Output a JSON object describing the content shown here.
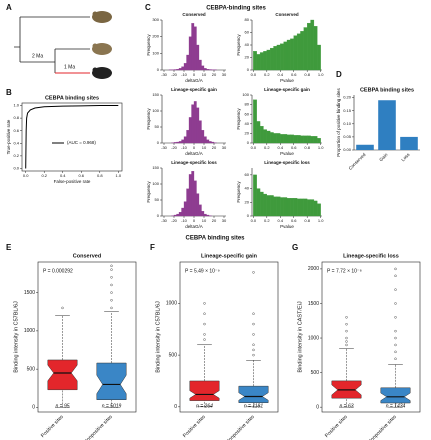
{
  "panel_a": {
    "label": "A",
    "branch_labels": [
      "2 Ma",
      "1 Ma"
    ]
  },
  "panel_c": {
    "label": "C",
    "title": "CEBPA-binding sites"
  },
  "panel_efg": {
    "title": "CEBPA binding sites"
  },
  "chart_data": [
    {
      "type": "line",
      "panel_label": "B",
      "title": "CEBPA binding sites",
      "xlabel": "False-positive rate",
      "ylabel": "True-positive rate",
      "legend": "(AUC = 0.968)",
      "x": [
        0,
        0.005,
        0.01,
        0.02,
        0.05,
        0.1,
        0.2,
        0.4,
        0.6,
        0.8,
        1.0
      ],
      "values": [
        0,
        0.6,
        0.8,
        0.88,
        0.93,
        0.96,
        0.98,
        0.99,
        0.995,
        1,
        1
      ],
      "color": "#000000",
      "xlim": [
        -0.04,
        1.04
      ],
      "ylim": [
        -0.04,
        1.04
      ],
      "xticks": [
        {
          "value": 0,
          "label": "0.0"
        },
        0.2,
        0.4,
        0.6,
        0.8,
        {
          "value": 1,
          "label": "1.0"
        }
      ],
      "yticks": [
        {
          "value": 0,
          "label": "0.0"
        },
        0.2,
        0.4,
        0.6,
        0.8,
        {
          "value": 1,
          "label": "1.0"
        }
      ]
    },
    {
      "type": "histogram",
      "title": "Conserved",
      "xlabel": "deltaG/A",
      "ylabel": "Frequency",
      "color": "#8e3c91",
      "bins": [
        -30,
        -27.5,
        -25,
        -22.5,
        -20,
        -17.5,
        -15,
        -12.5,
        -10,
        -7.5,
        -5,
        -2.5,
        0,
        2.5,
        5,
        7.5,
        10,
        12.5,
        15,
        17.5,
        20,
        22.5,
        25,
        27.5,
        30
      ],
      "values": [
        0,
        0,
        1,
        2,
        3,
        5,
        10,
        20,
        40,
        90,
        200,
        280,
        260,
        150,
        60,
        25,
        10,
        5,
        3,
        2,
        1,
        0,
        0,
        0
      ],
      "xlim": [
        -32,
        32
      ],
      "xticks": [
        -30,
        -20,
        -10,
        0,
        10,
        20,
        30
      ],
      "ylim": [
        0,
        300
      ],
      "yticks": [
        0,
        100,
        200,
        300
      ]
    },
    {
      "type": "histogram",
      "title": "Conserved",
      "xlabel": "Pvalue",
      "ylabel": "Frequency",
      "color": "#3f9a3c",
      "bins": [
        0,
        0.05,
        0.1,
        0.15,
        0.2,
        0.25,
        0.3,
        0.35,
        0.4,
        0.45,
        0.5,
        0.55,
        0.6,
        0.65,
        0.7,
        0.75,
        0.8,
        0.85,
        0.9,
        0.95,
        1
      ],
      "values": [
        30,
        25,
        28,
        30,
        32,
        35,
        38,
        40,
        42,
        45,
        48,
        50,
        55,
        58,
        62,
        68,
        75,
        80,
        70,
        40
      ],
      "xlim": [
        -0.02,
        1.02
      ],
      "xticks": [
        {
          "value": 0,
          "label": "0.0"
        },
        0.2,
        0.4,
        0.6,
        0.8,
        {
          "value": 1,
          "label": "1.0"
        }
      ],
      "ylim": [
        0,
        80
      ],
      "yticks": [
        0,
        20,
        40,
        60,
        80
      ]
    },
    {
      "type": "histogram",
      "title": "Lineage-specific gain",
      "xlabel": "deltaG/A",
      "ylabel": "Frequency",
      "color": "#8e3c91",
      "bins": [
        -30,
        -27.5,
        -25,
        -22.5,
        -20,
        -17.5,
        -15,
        -12.5,
        -10,
        -7.5,
        -5,
        -2.5,
        0,
        2.5,
        5,
        7.5,
        10,
        12.5,
        15,
        17.5,
        20,
        22.5,
        25,
        27.5,
        30
      ],
      "values": [
        0,
        0,
        0,
        1,
        2,
        3,
        5,
        10,
        20,
        40,
        80,
        120,
        130,
        110,
        70,
        40,
        20,
        10,
        5,
        3,
        1,
        0,
        0,
        0
      ],
      "xlim": [
        -32,
        32
      ],
      "xticks": [
        -30,
        -20,
        -10,
        0,
        10,
        20,
        30
      ],
      "ylim": [
        0,
        150
      ],
      "yticks": [
        0,
        50,
        100,
        150
      ]
    },
    {
      "type": "histogram",
      "title": "Lineage-specific gain",
      "xlabel": "Pvalue",
      "ylabel": "Frequency",
      "color": "#3f9a3c",
      "bins": [
        0,
        0.05,
        0.1,
        0.15,
        0.2,
        0.25,
        0.3,
        0.35,
        0.4,
        0.45,
        0.5,
        0.55,
        0.6,
        0.65,
        0.7,
        0.75,
        0.8,
        0.85,
        0.9,
        0.95,
        1
      ],
      "values": [
        90,
        45,
        35,
        28,
        25,
        22,
        20,
        20,
        18,
        18,
        17,
        17,
        16,
        16,
        15,
        15,
        15,
        14,
        14,
        10
      ],
      "xlim": [
        -0.02,
        1.02
      ],
      "xticks": [
        {
          "value": 0,
          "label": "0.0"
        },
        0.2,
        0.4,
        0.6,
        0.8,
        {
          "value": 1,
          "label": "1.0"
        }
      ],
      "ylim": [
        0,
        100
      ],
      "yticks": [
        0,
        20,
        40,
        60,
        80,
        100
      ]
    },
    {
      "type": "histogram",
      "title": "Lineage-specific loss",
      "xlabel": "deltaG/A",
      "ylabel": "Frequency",
      "color": "#8e3c91",
      "bins": [
        -30,
        -27.5,
        -25,
        -22.5,
        -20,
        -17.5,
        -15,
        -12.5,
        -10,
        -7.5,
        -5,
        -2.5,
        0,
        2.5,
        5,
        7.5,
        10,
        12.5,
        15,
        17.5,
        20,
        22.5,
        25,
        27.5,
        30
      ],
      "values": [
        0,
        0,
        0,
        1,
        3,
        6,
        12,
        25,
        45,
        85,
        130,
        140,
        110,
        70,
        35,
        15,
        6,
        3,
        1,
        0,
        0,
        0,
        0,
        0
      ],
      "xlim": [
        -32,
        32
      ],
      "xticks": [
        -30,
        -20,
        -10,
        0,
        10,
        20,
        30
      ],
      "ylim": [
        0,
        150
      ],
      "yticks": [
        0,
        50,
        100,
        150
      ]
    },
    {
      "type": "histogram",
      "title": "Lineage-specific loss",
      "xlabel": "Pvalue",
      "ylabel": "Frequency",
      "color": "#3f9a3c",
      "bins": [
        0,
        0.05,
        0.1,
        0.15,
        0.2,
        0.25,
        0.3,
        0.35,
        0.4,
        0.45,
        0.5,
        0.55,
        0.6,
        0.65,
        0.7,
        0.75,
        0.8,
        0.85,
        0.9,
        0.95,
        1
      ],
      "values": [
        60,
        40,
        35,
        32,
        30,
        30,
        28,
        28,
        27,
        27,
        26,
        26,
        26,
        25,
        25,
        25,
        24,
        24,
        22,
        18
      ],
      "xlim": [
        -0.02,
        1.02
      ],
      "xticks": [
        {
          "value": 0,
          "label": "0.0"
        },
        0.2,
        0.4,
        0.6,
        0.8,
        {
          "value": 1,
          "label": "1.0"
        }
      ],
      "ylim": [
        0,
        70
      ],
      "yticks": [
        0,
        20,
        40,
        60
      ]
    },
    {
      "type": "bar",
      "panel_label": "D",
      "title": "CEBPA binding sites",
      "ylabel": "Proportion of positive binding sites",
      "color": "#2f7fc1",
      "categories": [
        "Conserved",
        "Gain",
        "Loss"
      ],
      "values": [
        0.02,
        0.19,
        0.05
      ],
      "ylim": [
        0,
        0.21
      ],
      "yticks": [
        {
          "value": 0,
          "label": "0.00"
        },
        0.05,
        {
          "value": 0.1,
          "label": "0.10"
        },
        0.15,
        {
          "value": 0.2,
          "label": "0.20"
        }
      ]
    },
    {
      "type": "box",
      "panel_label": "E",
      "title": "Conserved",
      "ylabel": "Binding intensity in C57BL/6J",
      "annotation": "P = 0.000292",
      "categories": [
        "Positive sites",
        "Nonpositive sites"
      ],
      "boxes": [
        {
          "color": "#e3262b",
          "whislo": 0,
          "q1": 230,
          "med": 450,
          "q3": 620,
          "whishi": 1200,
          "outliers": [
            1300
          ],
          "n_label": "n = 95"
        },
        {
          "color": "#3a86c6",
          "whislo": 0,
          "q1": 100,
          "med": 300,
          "q3": 580,
          "whishi": 1250,
          "outliers": [
            1300,
            1400,
            1500,
            1600,
            1700,
            1800,
            1850
          ],
          "n_label": "n = 5019"
        }
      ],
      "ylim": [
        -60,
        1900
      ],
      "yticks": [
        0,
        500,
        1000,
        1500
      ]
    },
    {
      "type": "box",
      "panel_label": "F",
      "title": "Lineage-specific gain",
      "ylabel": "Binding intensity in C57BL/6J",
      "annotation": "P = 5.49 × 10⁻⁹",
      "categories": [
        "Positive sites",
        "Nonpositive sites"
      ],
      "boxes": [
        {
          "color": "#e3262b",
          "whislo": 0,
          "q1": 60,
          "med": 120,
          "q3": 250,
          "whishi": 600,
          "outliers": [
            650,
            700,
            800,
            900,
            1000
          ],
          "n_label": "n = 264"
        },
        {
          "color": "#3a86c6",
          "whislo": 0,
          "q1": 40,
          "med": 100,
          "q3": 200,
          "whishi": 450,
          "outliers": [
            500,
            550,
            600,
            700,
            800,
            900,
            1300
          ],
          "n_label": "n = 1181"
        }
      ],
      "ylim": [
        -50,
        1400
      ],
      "yticks": [
        0,
        500,
        1000
      ]
    },
    {
      "type": "box",
      "panel_label": "G",
      "title": "Lineage-specific loss",
      "ylabel": "Binding intensity in CAST/EiJ",
      "annotation": "P = 7.72 × 10⁻⁸",
      "categories": [
        "Positive sites",
        "Nonpositive sites"
      ],
      "boxes": [
        {
          "color": "#e3262b",
          "whislo": 0,
          "q1": 130,
          "med": 250,
          "q3": 380,
          "whishi": 850,
          "outliers": [
            900,
            950,
            1000,
            1100,
            1200,
            1300
          ],
          "n_label": "n = 63"
        },
        {
          "color": "#3a86c6",
          "whislo": 0,
          "q1": 60,
          "med": 150,
          "q3": 280,
          "whishi": 620,
          "outliers": [
            700,
            800,
            900,
            1000,
            1100,
            1300,
            1500,
            1700,
            1900,
            2000
          ],
          "n_label": "n = 1434"
        }
      ],
      "ylim": [
        -70,
        2100
      ],
      "yticks": [
        0,
        500,
        1000,
        1500,
        2000
      ]
    }
  ]
}
